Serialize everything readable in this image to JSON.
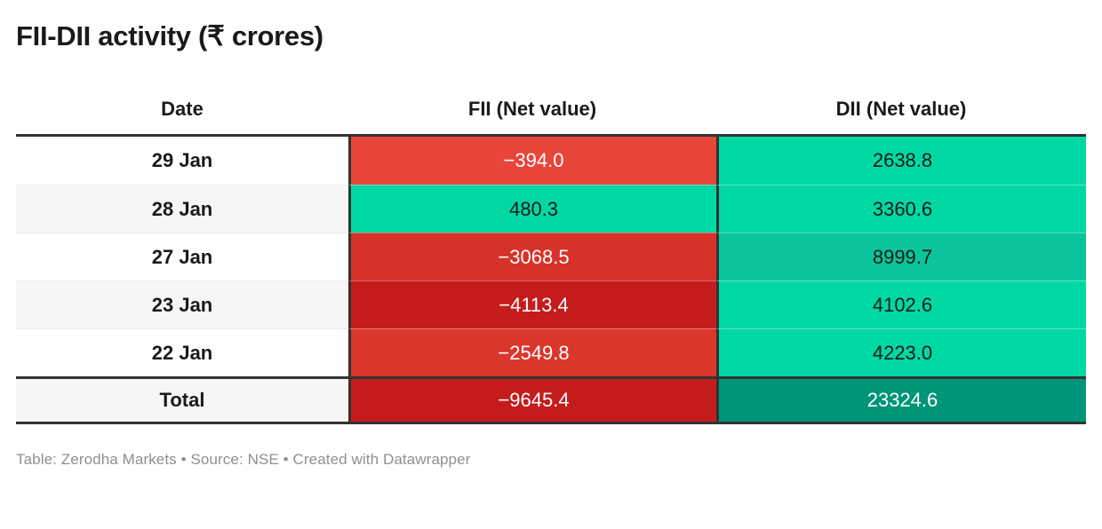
{
  "title": "FII-DII activity (₹ crores)",
  "table": {
    "columns": [
      "Date",
      "FII (Net value)",
      "DII (Net value)"
    ],
    "rows": [
      {
        "date": "29 Jan",
        "fii": "−394.0",
        "dii": "2638.8",
        "date_bg": "#ffffff",
        "fii_bg": "#e8453b",
        "fii_fg": "#ffffff",
        "dii_bg": "#00d8a4",
        "dii_fg": "#1b1b1b"
      },
      {
        "date": "28 Jan",
        "fii": "480.3",
        "dii": "3360.6",
        "date_bg": "#f6f6f6",
        "fii_bg": "#00d8a4",
        "fii_fg": "#1b1b1b",
        "dii_bg": "#00d8a4",
        "dii_fg": "#1b1b1b"
      },
      {
        "date": "27 Jan",
        "fii": "−3068.5",
        "dii": "8999.7",
        "date_bg": "#ffffff",
        "fii_bg": "#d73229",
        "fii_fg": "#ffffff",
        "dii_bg": "#0bc49c",
        "dii_fg": "#1b1b1b"
      },
      {
        "date": "23 Jan",
        "fii": "−4113.4",
        "dii": "4102.6",
        "date_bg": "#f6f6f6",
        "fii_bg": "#c41c1c",
        "fii_fg": "#ffffff",
        "dii_bg": "#00d8a4",
        "dii_fg": "#1b1b1b"
      },
      {
        "date": "22 Jan",
        "fii": "−2549.8",
        "dii": "4223.0",
        "date_bg": "#ffffff",
        "fii_bg": "#da362c",
        "fii_fg": "#ffffff",
        "dii_bg": "#00d8a4",
        "dii_fg": "#1b1b1b"
      }
    ],
    "total": {
      "label": "Total",
      "fii": "−9645.4",
      "dii": "23324.6",
      "date_bg": "#f6f6f6",
      "fii_bg": "#c41c1c",
      "fii_fg": "#ffffff",
      "dii_bg": "#009579",
      "dii_fg": "#ffffff"
    }
  },
  "footer": {
    "text": "Table: Zerodha Markets • Source: NSE • Created with Datawrapper"
  },
  "colors": {
    "negative_strong": "#c41c1c",
    "negative_mid": "#d73229",
    "negative_light": "#e8453b",
    "positive_light": "#00d8a4",
    "positive_mid": "#0bc49c",
    "positive_strong": "#009579",
    "border_dark": "#333333",
    "row_alt_bg": "#f6f6f6",
    "footer_text": "#8f8f8f"
  },
  "chart_data": {
    "type": "table",
    "title": "FII-DII activity (₹ crores)",
    "columns": [
      "Date",
      "FII (Net value)",
      "DII (Net value)"
    ],
    "rows": [
      [
        "29 Jan",
        -394.0,
        2638.8
      ],
      [
        "28 Jan",
        480.3,
        3360.6
      ],
      [
        "27 Jan",
        -3068.5,
        8999.7
      ],
      [
        "23 Jan",
        -4113.4,
        4102.6
      ],
      [
        "22 Jan",
        -2549.8,
        4223.0
      ],
      [
        "Total",
        -9645.4,
        23324.6
      ]
    ],
    "coloring": "cell heatmap: negative values red (darker = more negative), positive values green/teal (darker = larger)",
    "footer": "Table: Zerodha Markets • Source: NSE • Created with Datawrapper"
  }
}
